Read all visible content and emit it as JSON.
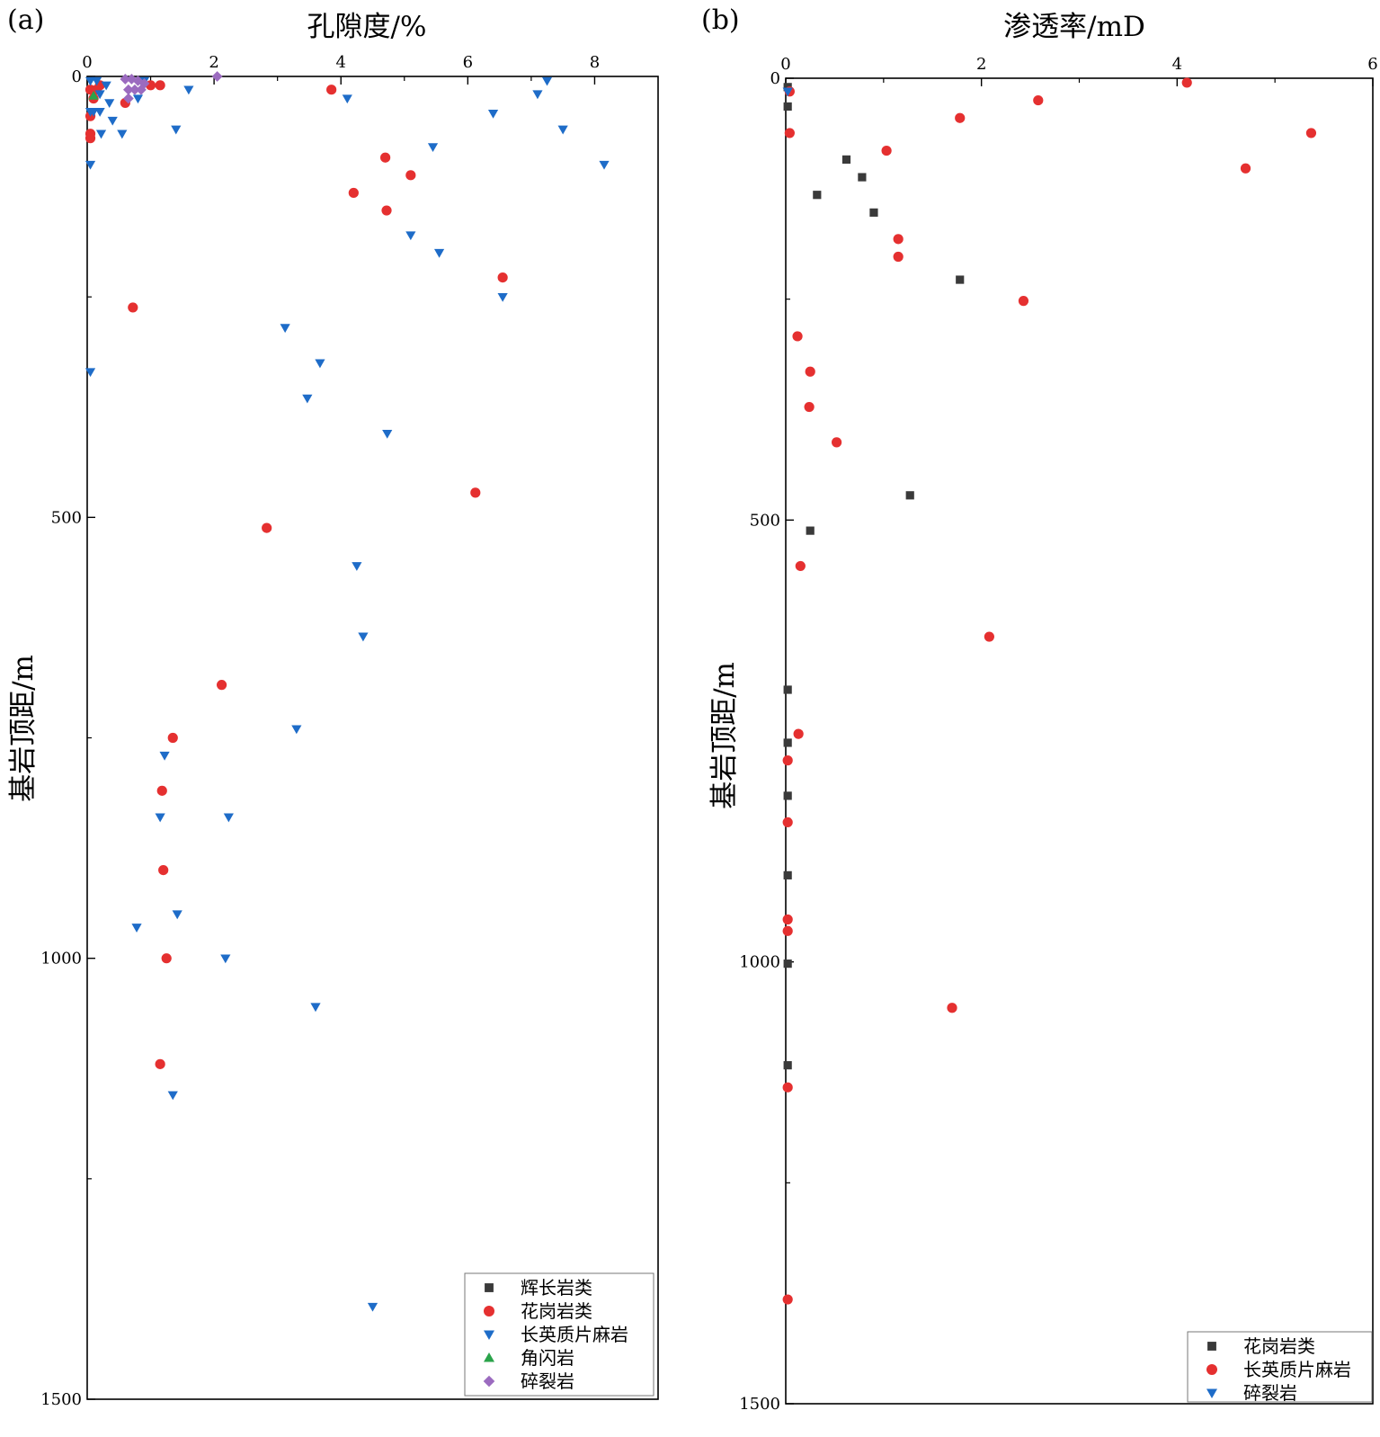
{
  "chart_data": [
    {
      "type": "scatter",
      "panel_label": "(a)",
      "title": "",
      "xlabel": "孔隙度/%",
      "ylabel": "基岩顶距/m",
      "x_axis_position": "top",
      "y_inverted": true,
      "xlim": [
        0,
        9
      ],
      "ylim": [
        0,
        1500
      ],
      "xticks": [
        0,
        2,
        4,
        6,
        8
      ],
      "yticks": [
        0,
        500,
        1000,
        1500
      ],
      "grid": false,
      "legend_position": "bottom-right",
      "series": [
        {
          "name": "辉长岩类",
          "marker": "square",
          "color": "#3a3a3a",
          "points": []
        },
        {
          "name": "花岗岩类",
          "marker": "circle",
          "color": "#e53030",
          "points": [
            [
              0.05,
              15
            ],
            [
              0.1,
              25
            ],
            [
              0.15,
              15
            ],
            [
              0.2,
              10
            ],
            [
              0.05,
              45
            ],
            [
              0.05,
              65
            ],
            [
              0.6,
              30
            ],
            [
              1.0,
              10
            ],
            [
              1.15,
              10
            ],
            [
              3.85,
              15
            ],
            [
              0.05,
              70
            ],
            [
              4.7,
              92
            ],
            [
              5.1,
              112
            ],
            [
              4.2,
              132
            ],
            [
              4.72,
              152
            ],
            [
              6.55,
              228
            ],
            [
              0.72,
              262
            ],
            [
              6.12,
              472
            ],
            [
              2.83,
              512
            ],
            [
              2.12,
              690
            ],
            [
              1.35,
              750
            ],
            [
              1.18,
              810
            ],
            [
              1.2,
              900
            ],
            [
              1.25,
              1000
            ],
            [
              1.15,
              1120
            ]
          ]
        },
        {
          "name": "长英质片麻岩",
          "marker": "triangle-down",
          "color": "#1e6cc8",
          "points": [
            [
              0.05,
              5
            ],
            [
              0.15,
              5
            ],
            [
              0.3,
              10
            ],
            [
              0.2,
              20
            ],
            [
              0.35,
              30
            ],
            [
              0.05,
              40
            ],
            [
              0.1,
              40
            ],
            [
              0.2,
              40
            ],
            [
              0.4,
              50
            ],
            [
              0.22,
              65
            ],
            [
              0.55,
              65
            ],
            [
              0.8,
              25
            ],
            [
              0.9,
              5
            ],
            [
              1.6,
              15
            ],
            [
              1.4,
              60
            ],
            [
              4.1,
              25
            ],
            [
              6.4,
              42
            ],
            [
              7.25,
              5
            ],
            [
              7.1,
              20
            ],
            [
              7.5,
              60
            ],
            [
              5.45,
              80
            ],
            [
              0.05,
              100
            ],
            [
              8.15,
              100
            ],
            [
              5.1,
              180
            ],
            [
              5.55,
              200
            ],
            [
              6.55,
              250
            ],
            [
              3.12,
              285
            ],
            [
              3.67,
              325
            ],
            [
              0.05,
              335
            ],
            [
              3.47,
              365
            ],
            [
              4.73,
              405
            ],
            [
              4.25,
              555
            ],
            [
              4.35,
              635
            ],
            [
              3.3,
              740
            ],
            [
              1.22,
              770
            ],
            [
              1.15,
              840
            ],
            [
              2.23,
              840
            ],
            [
              1.42,
              950
            ],
            [
              0.78,
              965
            ],
            [
              2.18,
              1000
            ],
            [
              3.6,
              1055
            ],
            [
              1.35,
              1155
            ],
            [
              4.5,
              1395
            ]
          ]
        },
        {
          "name": "角闪岩",
          "marker": "triangle-up",
          "color": "#2aa34a",
          "points": [
            [
              0.1,
              22
            ]
          ]
        },
        {
          "name": "碎裂岩",
          "marker": "diamond",
          "color": "#9b6bbf",
          "points": [
            [
              2.05,
              0
            ],
            [
              0.6,
              3
            ],
            [
              0.7,
              3
            ],
            [
              0.8,
              5
            ],
            [
              0.9,
              8
            ],
            [
              0.65,
              15
            ],
            [
              0.75,
              15
            ],
            [
              0.85,
              15
            ],
            [
              0.65,
              25
            ]
          ]
        }
      ]
    },
    {
      "type": "scatter",
      "panel_label": "(b)",
      "title": "",
      "xlabel": "渗透率/mD",
      "ylabel": "基岩顶距/m",
      "x_axis_position": "top",
      "y_inverted": true,
      "xlim": [
        0,
        6
      ],
      "ylim": [
        0,
        1500
      ],
      "xticks": [
        0,
        2,
        4,
        6
      ],
      "yticks": [
        0,
        500,
        1000,
        1500
      ],
      "grid": false,
      "legend_position": "bottom-right",
      "series": [
        {
          "name": "花岗岩类",
          "marker": "square",
          "color": "#3a3a3a",
          "points": [
            [
              0.02,
              10
            ],
            [
              0.02,
              32
            ],
            [
              0.62,
              92
            ],
            [
              0.78,
              112
            ],
            [
              0.32,
              132
            ],
            [
              0.9,
              152
            ],
            [
              1.78,
              228
            ],
            [
              1.27,
              472
            ],
            [
              0.25,
              512
            ],
            [
              0.02,
              692
            ],
            [
              0.02,
              752
            ],
            [
              0.02,
              812
            ],
            [
              0.02,
              902
            ],
            [
              0.02,
              1002
            ],
            [
              0.02,
              1117
            ]
          ]
        },
        {
          "name": "长英质片麻岩",
          "marker": "circle",
          "color": "#e53030",
          "points": [
            [
              0.04,
              15
            ],
            [
              4.1,
              5
            ],
            [
              2.58,
              25
            ],
            [
              1.78,
              45
            ],
            [
              0.04,
              62
            ],
            [
              5.37,
              62
            ],
            [
              1.03,
              82
            ],
            [
              4.7,
              102
            ],
            [
              1.15,
              182
            ],
            [
              1.15,
              202
            ],
            [
              2.43,
              252
            ],
            [
              0.12,
              292
            ],
            [
              0.25,
              332
            ],
            [
              0.24,
              372
            ],
            [
              0.52,
              412
            ],
            [
              0.15,
              552
            ],
            [
              2.08,
              632
            ],
            [
              0.13,
              742
            ],
            [
              0.02,
              772
            ],
            [
              0.02,
              842
            ],
            [
              0.02,
              952
            ],
            [
              0.02,
              965
            ],
            [
              1.7,
              1052
            ],
            [
              0.02,
              1142
            ],
            [
              0.02,
              1382
            ]
          ]
        },
        {
          "name": "碎裂岩",
          "marker": "triangle-down",
          "color": "#1e6cc8",
          "points": [
            [
              0.02,
              15
            ]
          ]
        }
      ]
    }
  ]
}
